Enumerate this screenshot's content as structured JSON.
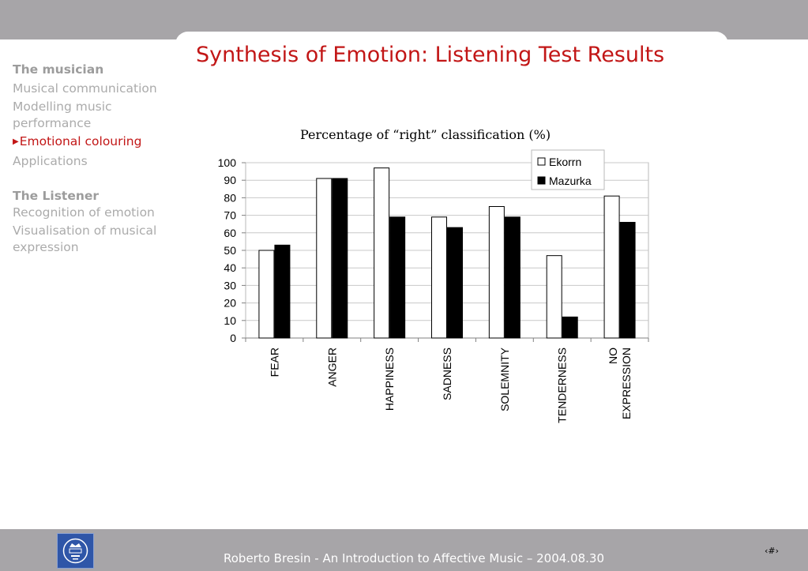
{
  "slide": {
    "title": "Synthesis of Emotion: Listening Test Results",
    "footer": "Roberto Bresin - An Introduction to Affective Music – 2004.08.30",
    "page_number": "‹#›"
  },
  "sidebar": {
    "section1_heading": "The musician",
    "section1_items": [
      {
        "label": "Musical communication"
      },
      {
        "label": "Modelling music performance"
      },
      {
        "label": "Emotional colouring"
      },
      {
        "label": "Applications"
      }
    ],
    "section2_heading": "The Listener",
    "section2_items": [
      {
        "label": "Recognition of emotion"
      },
      {
        "label": "Visualisation of musical expression"
      }
    ]
  },
  "colors": {
    "title_red": "#c21616",
    "band_gray": "#a7a5a8",
    "sidebar_gray": "#a9a9a9"
  },
  "logo_icon": "kth-crest-icon",
  "chart_data": {
    "type": "bar",
    "title": "Percentage of “right” classification (%)",
    "categories": [
      "FEAR",
      "ANGER",
      "HAPPINESS",
      "SADNESS",
      "SOLEMNITY",
      "TENDERNESS",
      "NO EXPRESSION"
    ],
    "category_lines": [
      [
        "FEAR"
      ],
      [
        "ANGER"
      ],
      [
        "HAPPINESS"
      ],
      [
        "SADNESS"
      ],
      [
        "SOLEMNITY"
      ],
      [
        "TENDERNESS"
      ],
      [
        "NO",
        "EXPRESSION"
      ]
    ],
    "series": [
      {
        "name": "Ekorrn",
        "values": [
          50,
          91,
          97,
          69,
          75,
          47,
          81
        ],
        "color": "#ffffff"
      },
      {
        "name": "Mazurka",
        "values": [
          53,
          91,
          69,
          63,
          69,
          12,
          66
        ],
        "color": "#000000"
      }
    ],
    "ylim": [
      0,
      100
    ],
    "yticks": [
      0,
      10,
      20,
      30,
      40,
      50,
      60,
      70,
      80,
      90,
      100
    ],
    "grid": true,
    "legend": "top-right"
  }
}
